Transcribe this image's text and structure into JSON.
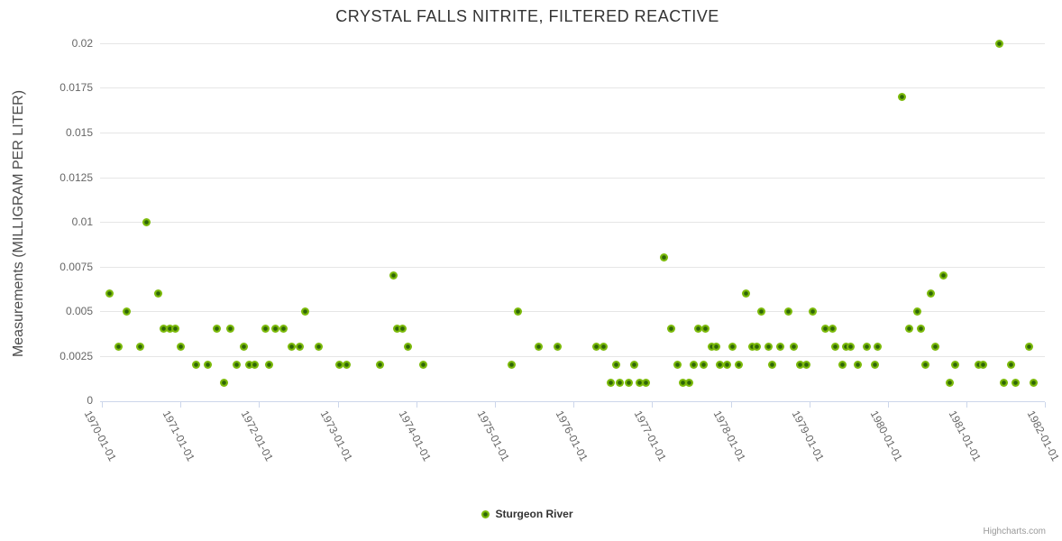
{
  "title": "CRYSTAL FALLS NITRITE, FILTERED REACTIVE",
  "legend": {
    "series_label": "Sturgeon River"
  },
  "credits": {
    "label": "Highcharts.com"
  },
  "colors": {
    "marker_outer": "#7cba0b",
    "marker_core": "#2f6607",
    "grid": "#e6e6e6",
    "axis_line": "#ccd6eb",
    "title_text": "#333333",
    "axis_label_text": "#666666",
    "credits_text": "#999999"
  },
  "chart_data": {
    "type": "scatter",
    "title": "CRYSTAL FALLS NITRITE, FILTERED REACTIVE",
    "xlabel": "",
    "ylabel": "Measurements (MILLIGRAM PER LITER)",
    "ylim": [
      0,
      0.02
    ],
    "ytick_labels": [
      "0",
      "0.0025",
      "0.005",
      "0.0075",
      "0.01",
      "0.0125",
      "0.015",
      "0.0175",
      "0.02"
    ],
    "xtick_labels": [
      "1970-01-01",
      "1971-01-01",
      "1972-01-01",
      "1973-01-01",
      "1974-01-01",
      "1975-01-01",
      "1976-01-01",
      "1977-01-01",
      "1978-01-01",
      "1979-01-01",
      "1980-01-01",
      "1981-01-01",
      "1982-01-01"
    ],
    "grid": "horizontal-only",
    "legend_position": "bottom-center",
    "series": [
      {
        "name": "Sturgeon River",
        "points": [
          [
            "1970-02-07",
            0.006
          ],
          [
            "1970-03-21",
            0.003
          ],
          [
            "1970-04-27",
            0.005
          ],
          [
            "1970-06-29",
            0.003
          ],
          [
            "1970-07-28",
            0.01
          ],
          [
            "1970-09-21",
            0.006
          ],
          [
            "1970-10-16",
            0.004
          ],
          [
            "1970-11-14",
            0.004
          ],
          [
            "1970-12-09",
            0.004
          ],
          [
            "1971-01-03",
            0.003
          ],
          [
            "1971-03-16",
            0.002
          ],
          [
            "1971-05-09",
            0.002
          ],
          [
            "1971-06-20",
            0.004
          ],
          [
            "1971-07-23",
            0.001
          ],
          [
            "1971-08-22",
            0.004
          ],
          [
            "1971-09-20",
            0.002
          ],
          [
            "1971-10-23",
            0.003
          ],
          [
            "1971-11-17",
            0.002
          ],
          [
            "1971-12-13",
            0.002
          ],
          [
            "1972-02-01",
            0.004
          ],
          [
            "1972-02-18",
            0.002
          ],
          [
            "1972-03-18",
            0.004
          ],
          [
            "1972-04-25",
            0.004
          ],
          [
            "1972-06-01",
            0.003
          ],
          [
            "1972-07-09",
            0.003
          ],
          [
            "1972-08-03",
            0.005
          ],
          [
            "1972-10-05",
            0.003
          ],
          [
            "1973-01-10",
            0.002
          ],
          [
            "1973-02-13",
            0.002
          ],
          [
            "1973-07-17",
            0.002
          ],
          [
            "1973-09-18",
            0.007
          ],
          [
            "1973-10-05",
            0.004
          ],
          [
            "1973-10-30",
            0.004
          ],
          [
            "1973-11-24",
            0.003
          ],
          [
            "1974-02-03",
            0.002
          ],
          [
            "1975-03-21",
            0.002
          ],
          [
            "1975-04-19",
            0.005
          ],
          [
            "1975-07-24",
            0.003
          ],
          [
            "1975-10-20",
            0.003
          ],
          [
            "1976-04-17",
            0.003
          ],
          [
            "1976-05-21",
            0.003
          ],
          [
            "1976-06-20",
            0.001
          ],
          [
            "1976-07-15",
            0.002
          ],
          [
            "1976-08-04",
            0.001
          ],
          [
            "1976-09-15",
            0.001
          ],
          [
            "1976-10-10",
            0.002
          ],
          [
            "1976-11-04",
            0.001
          ],
          [
            "1976-12-03",
            0.001
          ],
          [
            "1977-02-26",
            0.008
          ],
          [
            "1977-03-31",
            0.004
          ],
          [
            "1977-04-30",
            0.002
          ],
          [
            "1977-05-25",
            0.001
          ],
          [
            "1977-06-23",
            0.001
          ],
          [
            "1977-07-14",
            0.002
          ],
          [
            "1977-08-04",
            0.004
          ],
          [
            "1977-08-29",
            0.002
          ],
          [
            "1977-09-06",
            0.004
          ],
          [
            "1977-10-06",
            0.003
          ],
          [
            "1977-10-27",
            0.003
          ],
          [
            "1977-11-12",
            0.002
          ],
          [
            "1977-12-16",
            0.002
          ],
          [
            "1978-01-10",
            0.003
          ],
          [
            "1978-02-08",
            0.002
          ],
          [
            "1978-03-14",
            0.006
          ],
          [
            "1978-04-12",
            0.003
          ],
          [
            "1978-05-03",
            0.003
          ],
          [
            "1978-05-24",
            0.005
          ],
          [
            "1978-06-26",
            0.003
          ],
          [
            "1978-07-13",
            0.002
          ],
          [
            "1978-08-20",
            0.003
          ],
          [
            "1978-09-27",
            0.005
          ],
          [
            "1978-10-22",
            0.003
          ],
          [
            "1978-11-20",
            0.002
          ],
          [
            "1978-12-19",
            0.002
          ],
          [
            "1979-01-18",
            0.005
          ],
          [
            "1979-03-17",
            0.004
          ],
          [
            "1979-04-20",
            0.004
          ],
          [
            "1979-05-02",
            0.003
          ],
          [
            "1979-06-05",
            0.002
          ],
          [
            "1979-06-21",
            0.003
          ],
          [
            "1979-07-12",
            0.003
          ],
          [
            "1979-08-15",
            0.002
          ],
          [
            "1979-09-26",
            0.003
          ],
          [
            "1979-11-02",
            0.002
          ],
          [
            "1979-11-15",
            0.003
          ],
          [
            "1980-03-07",
            0.017
          ],
          [
            "1980-04-09",
            0.004
          ],
          [
            "1980-05-17",
            0.005
          ],
          [
            "1980-06-03",
            0.004
          ],
          [
            "1980-06-24",
            0.002
          ],
          [
            "1980-07-19",
            0.006
          ],
          [
            "1980-08-09",
            0.003
          ],
          [
            "1980-09-16",
            0.007
          ],
          [
            "1980-10-15",
            0.001
          ],
          [
            "1980-11-09",
            0.002
          ],
          [
            "1981-02-27",
            0.002
          ],
          [
            "1981-03-20",
            0.002
          ],
          [
            "1981-06-03",
            0.02
          ],
          [
            "1981-06-24",
            0.001
          ],
          [
            "1981-07-27",
            0.002
          ],
          [
            "1981-08-17",
            0.001
          ],
          [
            "1981-10-19",
            0.003
          ],
          [
            "1981-11-09",
            0.001
          ]
        ]
      }
    ]
  }
}
